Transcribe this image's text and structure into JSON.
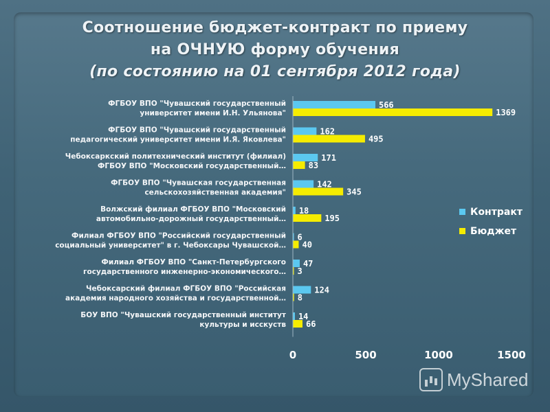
{
  "title": {
    "line1": "Соотношение бюджет-контракт по приему",
    "line2": "на ОЧНУЮ форму обучения",
    "line3": "(по состоянию на 01 сентября 2012 года)"
  },
  "watermark": "MyShared",
  "chart_data": {
    "type": "bar",
    "orientation": "horizontal",
    "categories": [
      [
        "ФГБОУ ВПО \"Чувашский государственный",
        "университет имени И.Н. Ульянова\""
      ],
      [
        "ФГБОУ ВПО \"Чувашский государственный",
        "педагогический университет имени И.Я. Яковлева\""
      ],
      [
        "Чебоксаркский политехнический институт (филиал)",
        "ФГБОУ ВПО \"Московский государственный…"
      ],
      [
        "ФГБОУ ВПО \"Чувашская государственная",
        "сельскохозяйственная академия\""
      ],
      [
        "Волжский филиал ФГБОУ ВПО \"Московский",
        "автомобильно-дорожный государственный…"
      ],
      [
        "Филиал ФГБОУ ВПО \"Российский государственный",
        "социальный университет\" в г. Чебоксары Чувашской…"
      ],
      [
        "Филиал ФГБОУ ВПО \"Санкт-Петербургского",
        "государственного инженерно-экономического…"
      ],
      [
        "Чебоксарский филиал ФГБОУ ВПО \"Российская",
        "академия народного хозяйства и государственной…"
      ],
      [
        "БОУ ВПО \"Чувашский государственный институт",
        "культуры и исскуств"
      ]
    ],
    "series": [
      {
        "name": "Контракт",
        "color": "#5bc8f0",
        "values": [
          566,
          162,
          171,
          142,
          18,
          6,
          47,
          124,
          14
        ]
      },
      {
        "name": "Бюджет",
        "color": "#f5ec00",
        "values": [
          1369,
          495,
          83,
          345,
          195,
          40,
          3,
          8,
          66
        ]
      }
    ],
    "xlim": [
      0,
      1500
    ],
    "xticks": [
      "0",
      "500",
      "1000",
      "1500"
    ],
    "legend": "right",
    "grid": false
  }
}
